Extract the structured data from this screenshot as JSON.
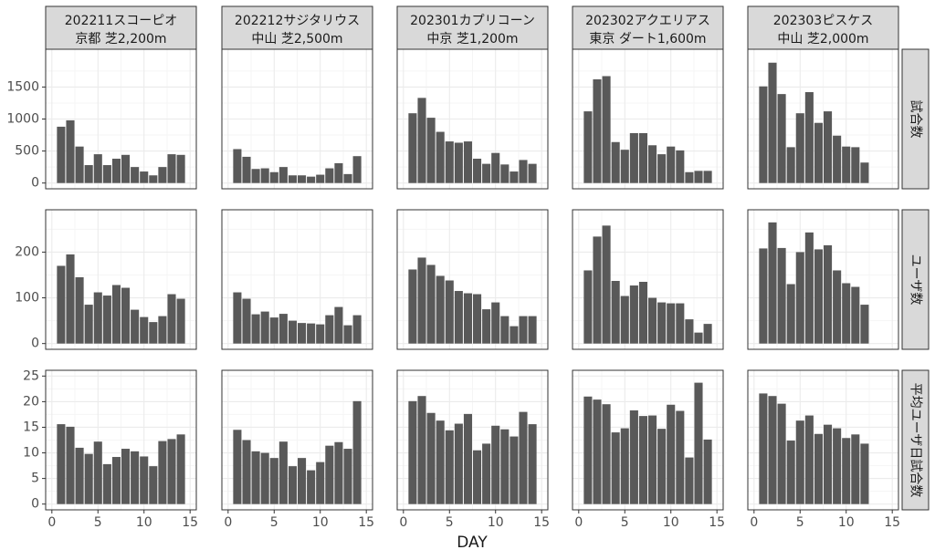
{
  "chart_data": {
    "type": "bar",
    "xlabel": "DAY",
    "xlim": [
      0,
      15
    ],
    "x_ticks": [
      "0",
      "5",
      "10",
      "15"
    ],
    "grid": true,
    "facet_columns": [
      {
        "line1": "202211スコーピオ",
        "line2": "京都 芝2,200m"
      },
      {
        "line1": "202212サジタリウス",
        "line2": "中山 芝2,500m"
      },
      {
        "line1": "202301カプリコーン",
        "line2": "中京 芝1,200m"
      },
      {
        "line1": "202302アクエリアス",
        "line2": "東京 ダート1,600m"
      },
      {
        "line1": "202303ピスケス",
        "line2": "中山 芝2,000m"
      }
    ],
    "facet_rows": [
      {
        "label": "試合数",
        "ylim": [
          0,
          2000
        ],
        "y_ticks": [
          0,
          500,
          1000,
          1500
        ],
        "y_tick_labels": [
          "0",
          "500",
          "1000",
          "1500"
        ],
        "series": [
          {
            "x": [
              1,
              2,
              3,
              4,
              5,
              6,
              7,
              8,
              9,
              10,
              11,
              12,
              13,
              14
            ],
            "values": [
              880,
              980,
              570,
              280,
              450,
              280,
              380,
              440,
              250,
              180,
              120,
              250,
              450,
              440
            ]
          },
          {
            "x": [
              1,
              2,
              3,
              4,
              5,
              6,
              7,
              8,
              9,
              10,
              11,
              12,
              13,
              14
            ],
            "values": [
              530,
              410,
              220,
              230,
              170,
              250,
              120,
              120,
              100,
              130,
              230,
              310,
              140,
              420
            ]
          },
          {
            "x": [
              1,
              2,
              3,
              4,
              5,
              6,
              7,
              8,
              9,
              10,
              11,
              12,
              13,
              14
            ],
            "values": [
              1090,
              1330,
              1020,
              800,
              650,
              630,
              650,
              380,
              300,
              470,
              290,
              180,
              360,
              300
            ]
          },
          {
            "x": [
              1,
              2,
              3,
              4,
              5,
              6,
              7,
              8,
              9,
              10,
              11,
              12,
              13,
              14
            ],
            "values": [
              1120,
              1620,
              1670,
              640,
              520,
              780,
              780,
              590,
              450,
              570,
              510,
              170,
              190,
              190
            ]
          },
          {
            "x": [
              1,
              2,
              3,
              4,
              5,
              6,
              7,
              8,
              9,
              10,
              11,
              12
            ],
            "values": [
              1510,
              1880,
              1390,
              560,
              1090,
              1420,
              940,
              1120,
              740,
              570,
              560,
              320
            ]
          }
        ]
      },
      {
        "label": "ユーザ数",
        "ylim": [
          0,
          280
        ],
        "y_ticks": [
          0,
          100,
          200
        ],
        "y_tick_labels": [
          "0",
          "100",
          "200"
        ],
        "series": [
          {
            "x": [
              1,
              2,
              3,
              4,
              5,
              6,
              7,
              8,
              9,
              10,
              11,
              12,
              13,
              14
            ],
            "values": [
              170,
              195,
              145,
              85,
              112,
              105,
              128,
              122,
              74,
              58,
              47,
              60,
              108,
              98
            ]
          },
          {
            "x": [
              1,
              2,
              3,
              4,
              5,
              6,
              7,
              8,
              9,
              10,
              11,
              12,
              13,
              14
            ],
            "values": [
              112,
              98,
              64,
              70,
              57,
              65,
              50,
              45,
              44,
              42,
              62,
              80,
              40,
              62
            ]
          },
          {
            "x": [
              1,
              2,
              3,
              4,
              5,
              6,
              7,
              8,
              9,
              10,
              11,
              12,
              13,
              14
            ],
            "values": [
              162,
              188,
              172,
              148,
              138,
              115,
              110,
              108,
              75,
              90,
              60,
              38,
              60,
              60
            ]
          },
          {
            "x": [
              1,
              2,
              3,
              4,
              5,
              6,
              7,
              8,
              9,
              10,
              11,
              12,
              13,
              14
            ],
            "values": [
              160,
              234,
              258,
              137,
              104,
              127,
              135,
              100,
              90,
              88,
              88,
              53,
              24,
              43
            ]
          },
          {
            "x": [
              1,
              2,
              3,
              4,
              5,
              6,
              7,
              8,
              9,
              10,
              11,
              12
            ],
            "values": [
              208,
              265,
              209,
              130,
              200,
              243,
              206,
              215,
              160,
              132,
              124,
              85
            ]
          }
        ]
      },
      {
        "label": "平均ユーザ日試合数",
        "ylim": [
          0,
          25
        ],
        "y_ticks": [
          0,
          5,
          10,
          15,
          20,
          25
        ],
        "y_tick_labels": [
          "0",
          "5",
          "10",
          "15",
          "20",
          "25"
        ],
        "series": [
          {
            "x": [
              1,
              2,
              3,
              4,
              5,
              6,
              7,
              8,
              9,
              10,
              11,
              12,
              13,
              14
            ],
            "values": [
              15.6,
              15.1,
              11.0,
              9.8,
              12.2,
              7.8,
              9.2,
              10.8,
              10.3,
              9.3,
              7.4,
              12.3,
              12.7,
              13.6
            ]
          },
          {
            "x": [
              1,
              2,
              3,
              4,
              5,
              6,
              7,
              8,
              9,
              10,
              11,
              12,
              13,
              14
            ],
            "values": [
              14.5,
              12.5,
              10.3,
              10.0,
              9.0,
              12.2,
              7.4,
              9.0,
              6.6,
              8.2,
              11.4,
              12.1,
              10.8,
              20.1
            ]
          },
          {
            "x": [
              1,
              2,
              3,
              4,
              5,
              6,
              7,
              8,
              9,
              10,
              11,
              12,
              13,
              14
            ],
            "values": [
              20.1,
              21.1,
              17.8,
              16.3,
              14.4,
              15.7,
              17.6,
              10.5,
              11.8,
              15.3,
              14.6,
              13.2,
              18.0,
              15.6
            ]
          },
          {
            "x": [
              1,
              2,
              3,
              4,
              5,
              6,
              7,
              8,
              9,
              10,
              11,
              12,
              13,
              14
            ],
            "values": [
              21.0,
              20.4,
              19.5,
              14.0,
              14.8,
              18.3,
              17.2,
              17.3,
              14.7,
              19.4,
              18.2,
              9.1,
              23.7,
              12.6
            ]
          },
          {
            "x": [
              1,
              2,
              3,
              4,
              5,
              6,
              7,
              8,
              9,
              10,
              11,
              12
            ],
            "values": [
              21.6,
              21.1,
              19.6,
              12.4,
              16.3,
              17.3,
              13.7,
              15.5,
              14.8,
              12.9,
              13.6,
              11.8
            ]
          }
        ]
      }
    ]
  },
  "colors": {
    "bar": "#595959",
    "strip_fill": "#d9d9d9",
    "panel_border": "#333333",
    "grid_major": "#ebebeb",
    "grid_minor": "#f5f5f5"
  }
}
